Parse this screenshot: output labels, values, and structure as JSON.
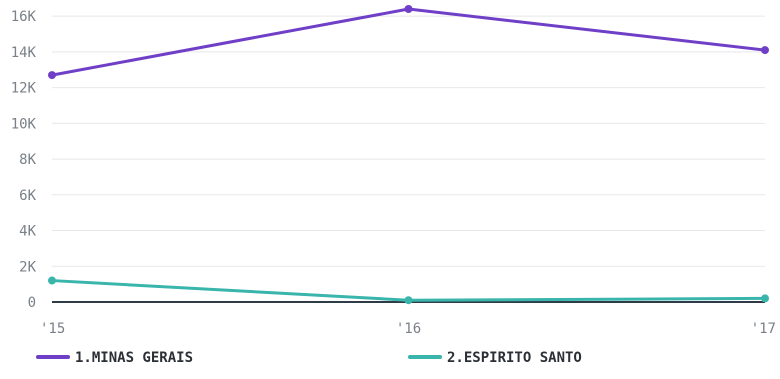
{
  "chart_data": {
    "type": "line",
    "title": "",
    "xlabel": "",
    "ylabel": "",
    "categories": [
      "'15",
      "'16",
      "'17"
    ],
    "y_ticks": [
      "0",
      "2K",
      "4K",
      "6K",
      "8K",
      "10K",
      "12K",
      "14K",
      "16K"
    ],
    "y_tick_values": [
      0,
      2000,
      4000,
      6000,
      8000,
      10000,
      12000,
      14000,
      16000
    ],
    "ylim": [
      0,
      16400
    ],
    "grid": true,
    "legend_position": "bottom",
    "series": [
      {
        "name": "1.MINAS GERAIS",
        "color": "#6f3fc8",
        "values": [
          12700,
          16400,
          14100
        ]
      },
      {
        "name": "2.ESPIRITO SANTO",
        "color": "#3ab5ac",
        "values": [
          1200,
          100,
          200
        ]
      }
    ],
    "zero_line_color": "#2f3b46",
    "grid_color": "#e6e8ec"
  }
}
